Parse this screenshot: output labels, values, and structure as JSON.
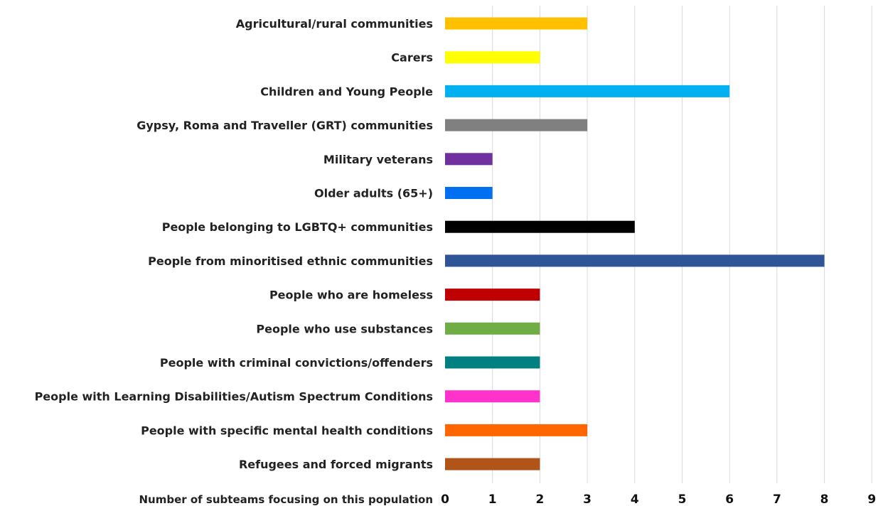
{
  "chart_data": {
    "type": "bar",
    "orientation": "horizontal",
    "title": "",
    "xlabel": "Number of subteams focusing on this population",
    "ylabel": "",
    "xlim": [
      0,
      9
    ],
    "x_ticks": [
      0,
      1,
      2,
      3,
      4,
      5,
      6,
      7,
      8,
      9
    ],
    "grid": true,
    "legend": "none",
    "categories": [
      "Agricultural/rural communities",
      "Carers",
      "Children and Young People",
      "Gypsy, Roma and Traveller (GRT) communities",
      "Military veterans",
      "Older adults (65+)",
      "People belonging to LGBTQ+ communities",
      "People from minoritised ethnic communities",
      "People who are homeless",
      "People who use substances",
      "People with criminal convictions/offenders",
      "People with Learning Disabilities/Autism Spectrum Conditions",
      "People with specific mental health conditions",
      "Refugees and forced migrants"
    ],
    "values": [
      3,
      2,
      6,
      3,
      1,
      1,
      4,
      8,
      2,
      2,
      2,
      2,
      3,
      2
    ],
    "colors": [
      "#FFC000",
      "#FFFF00",
      "#00B0F0",
      "#808080",
      "#7030A0",
      "#0070F0",
      "#000000",
      "#2F5597",
      "#C00000",
      "#70AD47",
      "#008080",
      "#FF33CC",
      "#FF6600",
      "#B05418"
    ]
  }
}
